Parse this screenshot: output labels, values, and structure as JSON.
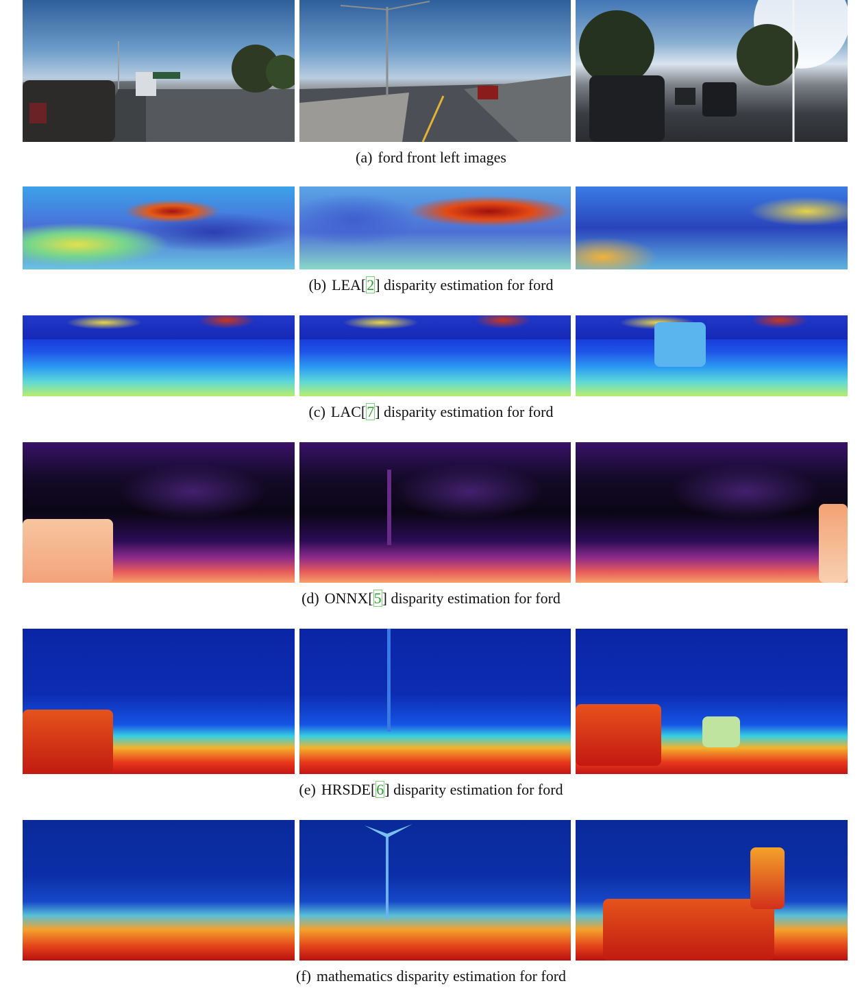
{
  "figure": {
    "captions": [
      {
        "label": "(a)",
        "text_before": "ford front left images",
        "ref": "",
        "text_after": ""
      },
      {
        "label": "(b)",
        "text_before": "LEA[",
        "ref": "2",
        "text_after": "] disparity estimation for ford"
      },
      {
        "label": "(c)",
        "text_before": "LAC[",
        "ref": "7",
        "text_after": "] disparity estimation for ford"
      },
      {
        "label": "(d)",
        "text_before": "ONNX[",
        "ref": "5",
        "text_after": "] disparity estimation for ford"
      },
      {
        "label": "(e)",
        "text_before": "HRSDE[",
        "ref": "6",
        "text_after": "] disparity estimation for ford"
      },
      {
        "label": "(f)",
        "text_before": "mathematics disparity estimation for ford",
        "ref": "",
        "text_after": ""
      }
    ]
  },
  "colors": {
    "ref_green": "#2e9e2e",
    "caption_text": "#111111"
  }
}
